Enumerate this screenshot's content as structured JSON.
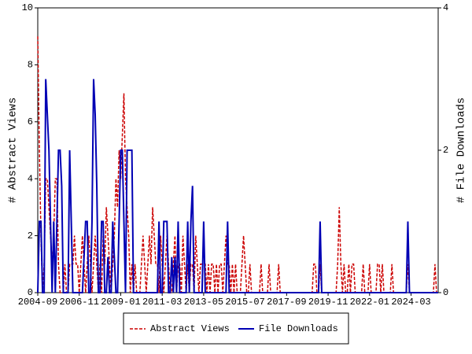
{
  "chart_data": {
    "type": "line",
    "y_label": "# Abstract Views",
    "y2_label": "# File Downloads",
    "x": [
      "2004-09",
      "2004-10",
      "2004-11",
      "2004-12",
      "2005-01",
      "2005-02",
      "2005-03",
      "2005-04",
      "2005-05",
      "2005-06",
      "2005-07",
      "2005-08",
      "2005-09",
      "2005-10",
      "2005-11",
      "2005-12",
      "2006-01",
      "2006-02",
      "2006-03",
      "2006-04",
      "2006-05",
      "2006-06",
      "2006-07",
      "2006-08",
      "2006-09",
      "2006-10",
      "2006-11",
      "2006-12",
      "2007-01",
      "2007-02",
      "2007-03",
      "2007-04",
      "2007-05",
      "2007-06",
      "2007-07",
      "2007-08",
      "2007-09",
      "2007-10",
      "2007-11",
      "2007-12",
      "2008-01",
      "2008-02",
      "2008-03",
      "2008-04",
      "2008-05",
      "2008-06",
      "2008-07",
      "2008-08",
      "2008-09",
      "2008-10",
      "2008-11",
      "2008-12",
      "2009-01",
      "2009-02",
      "2009-03",
      "2009-04",
      "2009-05",
      "2009-06",
      "2009-07",
      "2009-08",
      "2009-09",
      "2009-10",
      "2009-11",
      "2009-12",
      "2010-01",
      "2010-02",
      "2010-03",
      "2010-04",
      "2010-05",
      "2010-06",
      "2010-07",
      "2010-08",
      "2010-09",
      "2010-10",
      "2010-11",
      "2010-12",
      "2011-01",
      "2011-02",
      "2011-03",
      "2011-04",
      "2011-05",
      "2011-06",
      "2011-07",
      "2011-08",
      "2011-09",
      "2011-10",
      "2011-11",
      "2011-12",
      "2012-01",
      "2012-02",
      "2012-03",
      "2012-04",
      "2012-05",
      "2012-06",
      "2012-07",
      "2012-08",
      "2012-09",
      "2012-10",
      "2012-11",
      "2012-12",
      "2013-01",
      "2013-02",
      "2013-03",
      "2013-04",
      "2013-05",
      "2013-06",
      "2013-07",
      "2013-08",
      "2013-09",
      "2013-10",
      "2013-11",
      "2013-12",
      "2014-01",
      "2014-02",
      "2014-03",
      "2014-04",
      "2014-05",
      "2014-06",
      "2014-07",
      "2014-08",
      "2014-09",
      "2014-10",
      "2014-11",
      "2014-12",
      "2015-01",
      "2015-02",
      "2015-03",
      "2015-04",
      "2015-05",
      "2015-06",
      "2015-07",
      "2015-08",
      "2015-09",
      "2015-10",
      "2015-11",
      "2015-12",
      "2016-01",
      "2016-02",
      "2016-03",
      "2016-04",
      "2016-05",
      "2016-06",
      "2016-07",
      "2016-08",
      "2016-09",
      "2016-10",
      "2016-11",
      "2016-12",
      "2017-01",
      "2017-02",
      "2017-03",
      "2017-04",
      "2017-05",
      "2017-06",
      "2017-07",
      "2017-08",
      "2017-09",
      "2017-10",
      "2017-11",
      "2017-12",
      "2018-01",
      "2018-02",
      "2018-03",
      "2018-04",
      "2018-05",
      "2018-06",
      "2018-07",
      "2018-08",
      "2018-09",
      "2018-10",
      "2018-11",
      "2018-12",
      "2019-01",
      "2019-02",
      "2019-03",
      "2019-04",
      "2019-05",
      "2019-06",
      "2019-07",
      "2019-08",
      "2019-09",
      "2019-10",
      "2019-11",
      "2019-12",
      "2020-01",
      "2020-02",
      "2020-03",
      "2020-04",
      "2020-05",
      "2020-06",
      "2020-07",
      "2020-08",
      "2020-09",
      "2020-10",
      "2020-11",
      "2020-12",
      "2021-01",
      "2021-02",
      "2021-03",
      "2021-04",
      "2021-05",
      "2021-06",
      "2021-07",
      "2021-08",
      "2021-09",
      "2021-10",
      "2021-11",
      "2021-12",
      "2022-01",
      "2022-02",
      "2022-03",
      "2022-04",
      "2022-05",
      "2022-06",
      "2022-07",
      "2022-08",
      "2022-09",
      "2022-10",
      "2022-11",
      "2022-12",
      "2023-01",
      "2023-02",
      "2023-03",
      "2023-04",
      "2023-05",
      "2023-06",
      "2023-07",
      "2023-08",
      "2023-09",
      "2023-10",
      "2023-11",
      "2023-12",
      "2024-01",
      "2024-02",
      "2024-03",
      "2024-04",
      "2024-05",
      "2024-06",
      "2024-07",
      "2024-08",
      "2024-09",
      "2024-10",
      "2024-11",
      "2024-12",
      "2025-01",
      "2025-02",
      "2025-03",
      "2025-04",
      "2025-05",
      "2025-06",
      "2025-07",
      "2025-08"
    ],
    "xticks": [
      "2004-09",
      "2006-11",
      "2009-01",
      "2011-03",
      "2013-05",
      "2015-07",
      "2017-09",
      "2019-11",
      "2022-01",
      "2024-03"
    ],
    "ylim": [
      0,
      10
    ],
    "yticks": [
      0,
      2,
      4,
      6,
      8,
      10
    ],
    "y2lim": [
      0,
      4
    ],
    "y2ticks": [
      0,
      2,
      4
    ],
    "series": [
      {
        "name": "Abstract Views",
        "color": "#cc0000",
        "dash": true,
        "values": [
          9,
          5,
          2,
          0,
          1,
          4,
          4,
          3,
          2,
          1,
          2,
          4,
          4,
          1,
          0,
          0,
          0,
          1,
          0,
          0,
          1,
          1,
          1,
          2,
          1,
          1,
          0,
          1,
          2,
          1,
          0,
          1,
          2,
          1,
          0,
          1,
          2,
          1,
          0,
          1,
          0,
          2,
          1,
          3,
          2,
          1,
          0,
          1,
          2,
          4,
          3,
          5,
          4,
          5.5,
          7,
          4,
          3,
          2,
          0,
          1,
          0,
          1,
          0,
          0,
          0,
          1,
          2,
          1,
          0,
          1,
          2,
          1,
          3,
          2,
          1,
          1,
          0,
          2,
          1,
          0,
          1,
          2,
          1,
          0,
          0,
          1,
          2,
          0,
          1,
          1,
          0,
          2,
          1,
          0,
          1,
          0,
          1,
          1,
          0,
          2,
          1,
          0,
          1,
          1,
          1,
          1,
          0,
          1,
          0,
          1,
          1,
          0,
          1,
          0,
          1,
          1,
          0,
          1,
          2,
          1,
          1,
          0,
          1,
          0,
          1,
          0,
          0,
          0,
          1,
          2,
          1,
          0,
          0,
          1,
          0,
          0,
          0,
          0,
          0,
          0,
          1,
          0,
          0,
          0,
          0,
          1,
          0,
          0,
          0,
          0,
          0,
          1,
          0,
          0,
          0,
          0,
          0,
          0,
          0,
          0,
          0,
          0,
          0,
          0,
          0,
          0,
          0,
          0,
          0,
          0,
          0,
          0,
          0,
          1,
          1,
          0,
          0,
          1,
          0,
          0,
          0,
          0,
          0,
          0,
          0,
          0,
          0,
          0,
          1,
          3,
          1,
          0,
          1,
          0,
          0,
          1,
          0,
          1,
          1,
          0,
          0,
          0,
          0,
          0,
          1,
          0,
          0,
          0,
          1,
          0,
          0,
          0,
          0,
          1,
          1,
          0,
          1,
          0,
          0,
          0,
          0,
          0,
          1,
          0,
          0,
          0,
          0,
          0,
          0,
          0,
          0,
          0,
          1,
          0,
          0,
          0,
          0,
          0,
          0,
          0,
          0,
          0,
          0,
          0,
          0,
          0,
          0,
          0,
          0,
          1,
          0,
          0
        ]
      },
      {
        "name": "File Downloads",
        "color": "#0000b4",
        "axis": "y2",
        "values": [
          0,
          1,
          1,
          0,
          0,
          3,
          2.5,
          2,
          1,
          0,
          1,
          0,
          1,
          2,
          2,
          1.5,
          0,
          0,
          0,
          0,
          2,
          1,
          0,
          0,
          0,
          0,
          0,
          0,
          0,
          0.5,
          1,
          1,
          0,
          0,
          1,
          3,
          2.5,
          1.5,
          0,
          0,
          1,
          1,
          0,
          0,
          0.5,
          0,
          0,
          1,
          0.5,
          0,
          0,
          1,
          2,
          2,
          1,
          0,
          2,
          2,
          2,
          2,
          0,
          0,
          0,
          0,
          0,
          0,
          0,
          0,
          0,
          0,
          0,
          0,
          0,
          0,
          0,
          0,
          1,
          0,
          0,
          1,
          1,
          1,
          0,
          0,
          0.5,
          0,
          0.5,
          0,
          1,
          0,
          0,
          0,
          0,
          0,
          1,
          0,
          1,
          1.5,
          0,
          0,
          0,
          0,
          0,
          0,
          1,
          0,
          0,
          0,
          0,
          0,
          0,
          0,
          0,
          0,
          0,
          0,
          0,
          0,
          0,
          1,
          0,
          0,
          0,
          0,
          0,
          0,
          0,
          0,
          0,
          0,
          0,
          0,
          0,
          0,
          0,
          0,
          0,
          0,
          0,
          0,
          0,
          0,
          0,
          0,
          0,
          0,
          0,
          0,
          0,
          0,
          0,
          0,
          0,
          0,
          0,
          0,
          0,
          0,
          0,
          0,
          0,
          0,
          0,
          0,
          0,
          0,
          0,
          0,
          0,
          0,
          0,
          0,
          0,
          0,
          0,
          0,
          0,
          1,
          0,
          0,
          0,
          0,
          0,
          0,
          0,
          0,
          0,
          0,
          0,
          0,
          0,
          0,
          0,
          0,
          0,
          0,
          0,
          0,
          0,
          0,
          0,
          0,
          0,
          0,
          0,
          0,
          0,
          0,
          0,
          0,
          0,
          0,
          0,
          0,
          0,
          0,
          0,
          0,
          0,
          0,
          0,
          0,
          0,
          0,
          0,
          0,
          0,
          0,
          0,
          0,
          0,
          0,
          1,
          0,
          0,
          0,
          0,
          0,
          0,
          0,
          0,
          0,
          0,
          0,
          0,
          0,
          0,
          0,
          0,
          0,
          0,
          0
        ]
      }
    ],
    "legend": "bottom"
  }
}
